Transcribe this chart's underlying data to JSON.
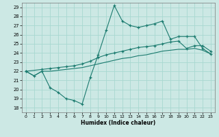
{
  "xlabel": "Humidex (Indice chaleur)",
  "background_color": "#cce8e4",
  "grid_color": "#a8d8d0",
  "line_color": "#1a7a6e",
  "xlim": [
    -0.5,
    23.5
  ],
  "ylim": [
    17.5,
    29.5
  ],
  "yticks": [
    18,
    19,
    20,
    21,
    22,
    23,
    24,
    25,
    26,
    27,
    28,
    29
  ],
  "xticks": [
    0,
    1,
    2,
    3,
    4,
    5,
    6,
    7,
    8,
    9,
    10,
    11,
    12,
    13,
    14,
    15,
    16,
    17,
    18,
    19,
    20,
    21,
    22,
    23
  ],
  "line1_x": [
    0,
    1,
    2,
    3,
    4,
    5,
    6,
    7,
    8,
    9,
    10,
    11,
    12,
    13,
    14,
    15,
    16,
    17,
    18,
    19,
    20,
    21,
    22,
    23
  ],
  "line1_y": [
    22.0,
    21.5,
    22.0,
    20.2,
    19.7,
    19.0,
    18.8,
    18.4,
    21.3,
    23.8,
    26.5,
    29.2,
    27.5,
    27.0,
    26.8,
    27.0,
    27.2,
    27.5,
    25.5,
    25.8,
    25.8,
    25.8,
    24.5,
    23.9
  ],
  "line2_x": [
    0,
    2,
    3,
    4,
    5,
    6,
    7,
    8,
    9,
    10,
    11,
    12,
    13,
    14,
    15,
    16,
    17,
    18,
    19,
    20,
    21,
    22,
    23
  ],
  "line2_y": [
    22.0,
    22.2,
    22.3,
    22.4,
    22.5,
    22.6,
    22.8,
    23.1,
    23.5,
    23.8,
    24.0,
    24.2,
    24.4,
    24.6,
    24.7,
    24.8,
    25.0,
    25.2,
    25.3,
    24.5,
    24.8,
    24.8,
    24.2
  ],
  "line3_x": [
    0,
    1,
    2,
    3,
    4,
    5,
    6,
    7,
    8,
    9,
    10,
    11,
    12,
    13,
    14,
    15,
    16,
    17,
    18,
    19,
    20,
    21,
    22,
    23
  ],
  "line3_y": [
    22.0,
    21.5,
    22.0,
    22.0,
    22.1,
    22.2,
    22.3,
    22.4,
    22.6,
    22.8,
    23.0,
    23.2,
    23.4,
    23.5,
    23.7,
    23.8,
    24.0,
    24.2,
    24.3,
    24.4,
    24.4,
    24.5,
    24.3,
    23.9
  ]
}
